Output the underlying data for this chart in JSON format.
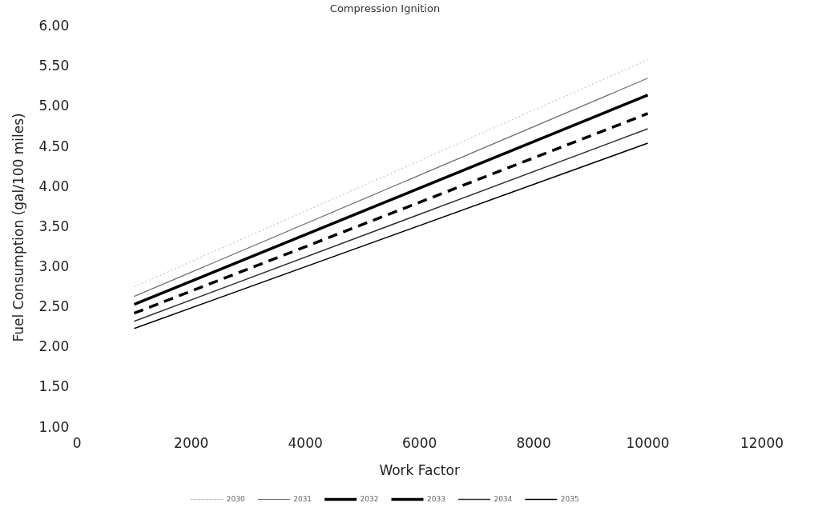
{
  "chart_data": {
    "type": "line",
    "title": "Compression Ignition",
    "xlabel": "Work Factor",
    "ylabel": "Fuel Consumption (gal/100 miles)",
    "x": [
      1000,
      10000
    ],
    "series": [
      {
        "name": "2030",
        "color": "#b8b8b8",
        "values": [
          2.76,
          5.59
        ],
        "line_style": "dotted"
      },
      {
        "name": "2031",
        "color": "#707070",
        "values": [
          2.64,
          5.36
        ]
      },
      {
        "name": "2032",
        "color": "#000000",
        "values": [
          2.54,
          5.15
        ]
      },
      {
        "name": "2033",
        "color": "#000000",
        "values": [
          2.43,
          4.92
        ],
        "line_style": "dashed"
      },
      {
        "name": "2034",
        "color": "#303030",
        "values": [
          2.33,
          4.73
        ]
      },
      {
        "name": "2035",
        "color": "#000000",
        "values": [
          2.24,
          4.55
        ]
      }
    ],
    "xlim": [
      0,
      12000
    ],
    "xticks": [
      0,
      2000,
      4000,
      6000,
      8000,
      10000,
      12000
    ],
    "ylim": [
      1,
      6
    ],
    "yticks": [
      {
        "value": 1,
        "label": "1.00"
      },
      {
        "value": 1.5,
        "label": "1.50"
      },
      {
        "value": 2,
        "label": "2.00"
      },
      {
        "value": 2.5,
        "label": "2.50"
      },
      {
        "value": 3,
        "label": "3.00"
      },
      {
        "value": 3.5,
        "label": "3.50"
      },
      {
        "value": 4,
        "label": "4.00"
      },
      {
        "value": 4.5,
        "label": "4.50"
      },
      {
        "value": 5,
        "label": "5.00"
      },
      {
        "value": 5.5,
        "label": "5.50"
      },
      {
        "value": 6,
        "label": "6.00"
      }
    ],
    "grid": false,
    "legend": "bottom",
    "marker": "none",
    "line_style": "solid"
  }
}
